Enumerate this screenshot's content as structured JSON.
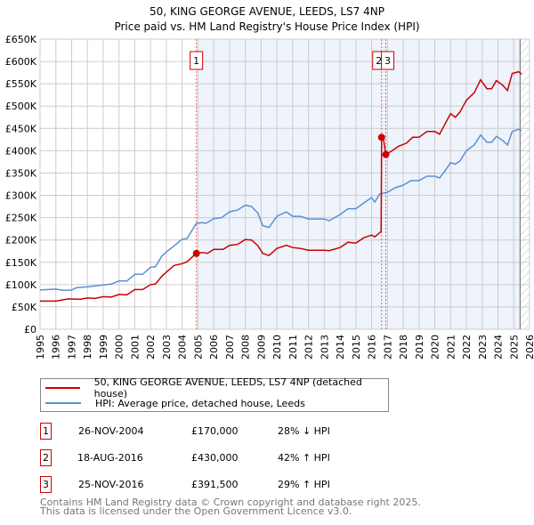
{
  "chart_data": {
    "type": "line",
    "title": "50, KING GEORGE AVENUE, LEEDS, LS7 4NP",
    "subtitle": "Price paid vs. HM Land Registry's House Price Index (HPI)",
    "xlim": [
      1995,
      2026
    ],
    "ylim": [
      0,
      650000
    ],
    "x_ticks": [
      "1995",
      "1996",
      "1997",
      "1998",
      "1999",
      "2000",
      "2001",
      "2002",
      "2003",
      "2004",
      "2005",
      "2006",
      "2007",
      "2008",
      "2009",
      "2010",
      "2011",
      "2012",
      "2013",
      "2014",
      "2015",
      "2016",
      "2017",
      "2018",
      "2019",
      "2020",
      "2021",
      "2022",
      "2023",
      "2024",
      "2025",
      "2026"
    ],
    "y_ticks": [
      {
        "v": 0,
        "label": "£0"
      },
      {
        "v": 50000,
        "label": "£50K"
      },
      {
        "v": 100000,
        "label": "£100K"
      },
      {
        "v": 150000,
        "label": "£150K"
      },
      {
        "v": 200000,
        "label": "£200K"
      },
      {
        "v": 250000,
        "label": "£250K"
      },
      {
        "v": 300000,
        "label": "£300K"
      },
      {
        "v": 350000,
        "label": "£350K"
      },
      {
        "v": 400000,
        "label": "£400K"
      },
      {
        "v": 450000,
        "label": "£450K"
      },
      {
        "v": 500000,
        "label": "£500K"
      },
      {
        "v": 550000,
        "label": "£550K"
      },
      {
        "v": 600000,
        "label": "£600K"
      },
      {
        "v": 650000,
        "label": "£650K"
      }
    ],
    "grid": true,
    "shaded_from": 2004.9,
    "projection_from": 2025.4,
    "series": [
      {
        "name": "50, KING GEORGE AVENUE, LEEDS, LS7 4NP (detached house)",
        "color": "#cc0000",
        "points": [
          [
            1995,
            63
          ],
          [
            1996,
            63
          ],
          [
            1996.8,
            68
          ],
          [
            1997.5,
            67
          ],
          [
            1998,
            70
          ],
          [
            1998.5,
            69
          ],
          [
            1999,
            73
          ],
          [
            1999.5,
            72
          ],
          [
            2000,
            78
          ],
          [
            2000.5,
            77
          ],
          [
            2001,
            89
          ],
          [
            2001.5,
            89
          ],
          [
            2002,
            100
          ],
          [
            2002.3,
            101
          ],
          [
            2002.7,
            118
          ],
          [
            2003,
            128
          ],
          [
            2003.5,
            143
          ],
          [
            2004,
            147
          ],
          [
            2004.3,
            151
          ],
          [
            2004.9,
            170
          ],
          [
            2005.3,
            172
          ],
          [
            2005.6,
            170
          ],
          [
            2006,
            179
          ],
          [
            2006.6,
            179
          ],
          [
            2007,
            188
          ],
          [
            2007.5,
            190
          ],
          [
            2008,
            201
          ],
          [
            2008.4,
            200
          ],
          [
            2008.8,
            187
          ],
          [
            2009.1,
            170
          ],
          [
            2009.5,
            165
          ],
          [
            2010,
            181
          ],
          [
            2010.6,
            188
          ],
          [
            2011,
            183
          ],
          [
            2011.5,
            181
          ],
          [
            2012,
            177
          ],
          [
            2013,
            177
          ],
          [
            2013.3,
            176
          ],
          [
            2014,
            183
          ],
          [
            2014.5,
            195
          ],
          [
            2015,
            193
          ],
          [
            2015.5,
            205
          ],
          [
            2016,
            211
          ],
          [
            2016.2,
            207
          ],
          [
            2016.6,
            219
          ],
          [
            2016.63,
            430
          ],
          [
            2016.75,
            425
          ],
          [
            2016.9,
            391.5
          ],
          [
            2017.3,
            400
          ],
          [
            2017.7,
            410
          ],
          [
            2018.2,
            417
          ],
          [
            2018.6,
            430
          ],
          [
            2019,
            430
          ],
          [
            2019.5,
            443
          ],
          [
            2020,
            443
          ],
          [
            2020.3,
            437
          ],
          [
            2020.6,
            457
          ],
          [
            2021,
            483
          ],
          [
            2021.3,
            475
          ],
          [
            2021.6,
            487
          ],
          [
            2022,
            513
          ],
          [
            2022.5,
            530
          ],
          [
            2022.9,
            559
          ],
          [
            2023.3,
            539
          ],
          [
            2023.6,
            539
          ],
          [
            2023.9,
            557
          ],
          [
            2024.3,
            547
          ],
          [
            2024.6,
            535
          ],
          [
            2024.9,
            573
          ],
          [
            2025.3,
            577
          ],
          [
            2025.5,
            572
          ]
        ]
      },
      {
        "name": "HPI: Average price, detached house, Leeds",
        "color": "#5b8fd4",
        "points": [
          [
            1995,
            88
          ],
          [
            1996,
            90
          ],
          [
            1996.5,
            87
          ],
          [
            1997,
            88
          ],
          [
            1997.3,
            93
          ],
          [
            1998,
            95
          ],
          [
            1999,
            99
          ],
          [
            1999.5,
            101
          ],
          [
            2000,
            108
          ],
          [
            2000.5,
            108
          ],
          [
            2001,
            123
          ],
          [
            2001.5,
            123
          ],
          [
            2002,
            139
          ],
          [
            2002.3,
            140
          ],
          [
            2002.7,
            163
          ],
          [
            2003,
            173
          ],
          [
            2003.5,
            187
          ],
          [
            2004,
            202
          ],
          [
            2004.3,
            203
          ],
          [
            2004.9,
            237
          ],
          [
            2005.3,
            239
          ],
          [
            2005.5,
            237
          ],
          [
            2006,
            248
          ],
          [
            2006.5,
            250
          ],
          [
            2007,
            263
          ],
          [
            2007.5,
            267
          ],
          [
            2008,
            278
          ],
          [
            2008.4,
            275
          ],
          [
            2008.8,
            260
          ],
          [
            2009.1,
            232
          ],
          [
            2009.5,
            228
          ],
          [
            2010,
            253
          ],
          [
            2010.6,
            263
          ],
          [
            2011,
            253
          ],
          [
            2011.5,
            253
          ],
          [
            2012,
            247
          ],
          [
            2013,
            247
          ],
          [
            2013.3,
            243
          ],
          [
            2014,
            257
          ],
          [
            2014.5,
            270
          ],
          [
            2015,
            270
          ],
          [
            2015.5,
            283
          ],
          [
            2016,
            295
          ],
          [
            2016.2,
            285
          ],
          [
            2016.5,
            303
          ],
          [
            2017,
            307
          ],
          [
            2017.5,
            317
          ],
          [
            2018,
            323
          ],
          [
            2018.5,
            333
          ],
          [
            2019,
            333
          ],
          [
            2019.5,
            343
          ],
          [
            2020,
            343
          ],
          [
            2020.3,
            339
          ],
          [
            2020.6,
            353
          ],
          [
            2021,
            373
          ],
          [
            2021.3,
            370
          ],
          [
            2021.6,
            377
          ],
          [
            2022,
            400
          ],
          [
            2022.5,
            413
          ],
          [
            2022.9,
            435
          ],
          [
            2023.3,
            419
          ],
          [
            2023.6,
            419
          ],
          [
            2023.9,
            432
          ],
          [
            2024.3,
            423
          ],
          [
            2024.6,
            413
          ],
          [
            2024.9,
            443
          ],
          [
            2025.3,
            448
          ],
          [
            2025.5,
            445
          ]
        ]
      }
    ],
    "y_units": "thousands GBP",
    "sales": [
      {
        "label": "1",
        "x": 2004.9,
        "value": 170
      },
      {
        "label": "2",
        "x": 2016.63,
        "value": 430
      },
      {
        "label": "3",
        "x": 2016.9,
        "value": 391.5
      }
    ]
  },
  "legend": {
    "property": "50, KING GEORGE AVENUE, LEEDS, LS7 4NP (detached house)",
    "hpi": "HPI: Average price, detached house, Leeds"
  },
  "transactions": [
    {
      "num": "1",
      "date": "26-NOV-2004",
      "price": "£170,000",
      "hpi": "28% ↓ HPI"
    },
    {
      "num": "2",
      "date": "18-AUG-2016",
      "price": "£430,000",
      "hpi": "42% ↑ HPI"
    },
    {
      "num": "3",
      "date": "25-NOV-2016",
      "price": "£391,500",
      "hpi": "29% ↑ HPI"
    }
  ],
  "footer": {
    "line1": "Contains HM Land Registry data © Crown copyright and database right 2025.",
    "line2": "This data is licensed under the Open Government Licence v3.0."
  }
}
